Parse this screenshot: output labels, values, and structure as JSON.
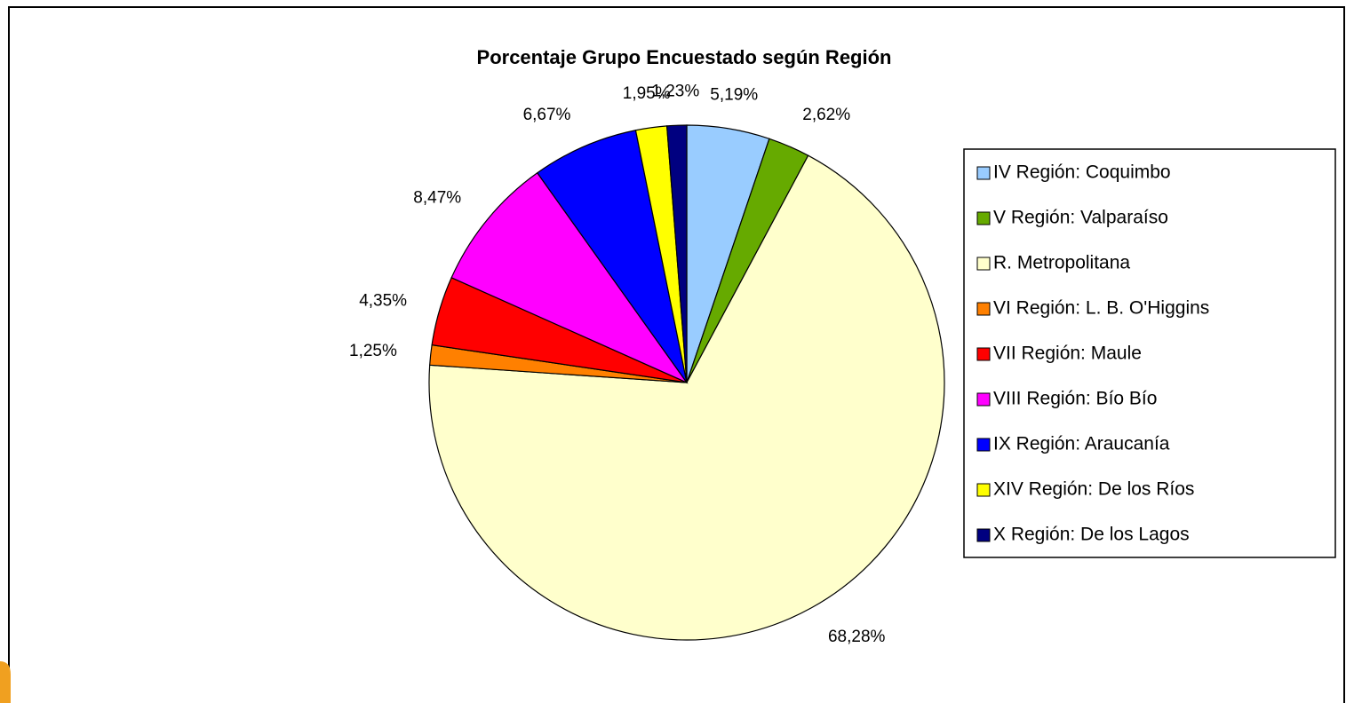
{
  "chart_data": {
    "type": "pie",
    "title": "Porcentaje Grupo Encuestado según Región",
    "categories": [
      "IV Región: Coquimbo",
      "V Región: Valparaíso",
      "R. Metropolitana",
      "VI Región: L. B. O'Higgins",
      "VII Región: Maule",
      "VIII Región: Bío Bío",
      "IX Región: Araucanía",
      "XIV Región: De los Ríos",
      "X Región: De los Lagos"
    ],
    "values": [
      5.19,
      2.62,
      68.28,
      1.25,
      4.35,
      8.47,
      6.67,
      1.95,
      1.23
    ],
    "value_labels": [
      "5,19%",
      "2,62%",
      "68,28%",
      "1,25%",
      "4,35%",
      "8,47%",
      "6,67%",
      "1,95%",
      "1,23%"
    ],
    "colors": [
      "#99ccff",
      "#66aa00",
      "#ffffcc",
      "#ff8000",
      "#ff0000",
      "#ff00ff",
      "#0000ff",
      "#ffff00",
      "#000080"
    ],
    "legend": "right"
  }
}
